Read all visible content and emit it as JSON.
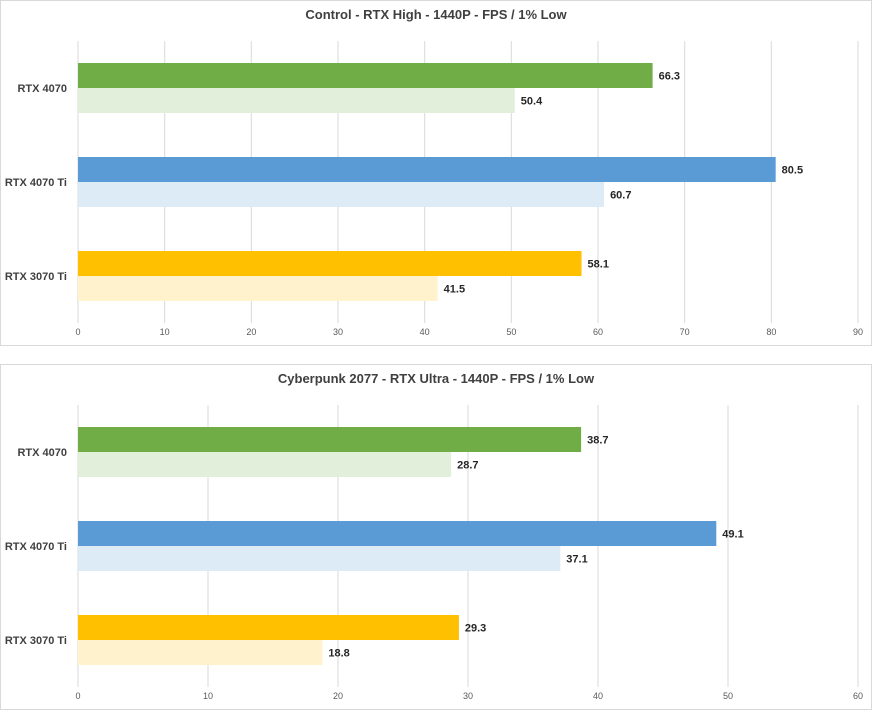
{
  "chart_data": [
    {
      "type": "bar",
      "orientation": "horizontal",
      "title": "Control - RTX High - 1440P - FPS / 1% Low",
      "categories": [
        "RTX 4070",
        "RTX 4070 Ti",
        "RTX 3070 Ti"
      ],
      "series": [
        {
          "values": [
            66.3,
            80.5,
            58.1
          ],
          "colors": [
            "#70ad47",
            "#5b9bd5",
            "#ffc000"
          ]
        },
        {
          "values": [
            50.4,
            60.7,
            41.5
          ],
          "colors": [
            "#e2efda",
            "#ddebf7",
            "#fff2cc"
          ]
        }
      ],
      "xlim": [
        0,
        90
      ],
      "xticks": [
        0,
        10,
        20,
        30,
        40,
        50,
        60,
        70,
        80,
        90
      ],
      "grid": true
    },
    {
      "type": "bar",
      "orientation": "horizontal",
      "title": "Cyberpunk 2077 - RTX Ultra - 1440P - FPS / 1% Low",
      "categories": [
        "RTX 4070",
        "RTX 4070 Ti",
        "RTX 3070 Ti"
      ],
      "series": [
        {
          "values": [
            38.7,
            49.1,
            29.3
          ],
          "colors": [
            "#70ad47",
            "#5b9bd5",
            "#ffc000"
          ]
        },
        {
          "values": [
            28.7,
            37.1,
            18.8
          ],
          "colors": [
            "#e2efda",
            "#ddebf7",
            "#fff2cc"
          ]
        }
      ],
      "xlim": [
        0,
        60
      ],
      "xticks": [
        0,
        10,
        20,
        30,
        40,
        50,
        60
      ],
      "grid": true
    }
  ]
}
